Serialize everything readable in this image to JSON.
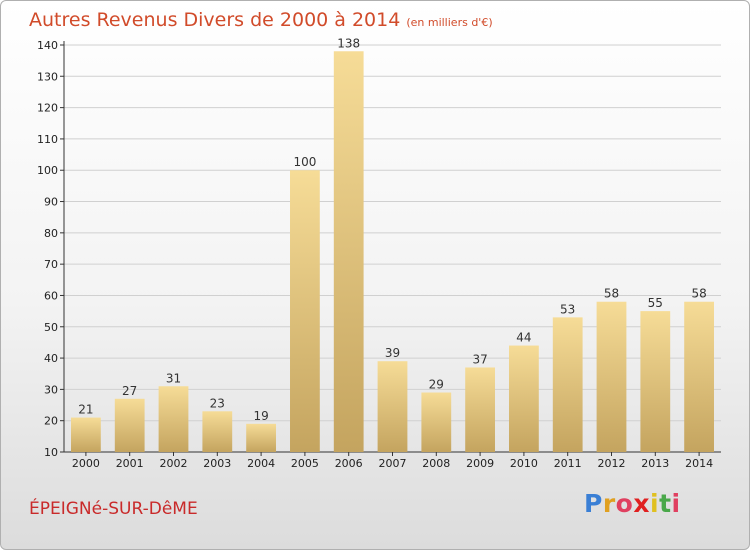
{
  "header": {
    "title": "Autres Revenus Divers de 2000 à 2014",
    "unit": "(en milliers d'€)"
  },
  "footer": {
    "commune": "ÉPEIGNé-SUR-DêME",
    "logo_letters": [
      "P",
      "r",
      "o",
      "x",
      "i",
      "t",
      "i"
    ],
    "logo_colors": [
      "#3a7fd5",
      "#e0a020",
      "#e04060",
      "#e02020",
      "#e0c020",
      "#4aa84a",
      "#e04060"
    ]
  },
  "colors": {
    "title": "#d14b2a",
    "commune": "#c92a2a",
    "bar_light": "#f6dc97",
    "bar_dark": "#c4a45f",
    "grid": "#d0d0d0",
    "axis": "#333333"
  },
  "chart_data": {
    "type": "bar",
    "categories": [
      "2000",
      "2001",
      "2002",
      "2003",
      "2004",
      "2005",
      "2006",
      "2007",
      "2008",
      "2009",
      "2010",
      "2011",
      "2012",
      "2013",
      "2014"
    ],
    "values": [
      21,
      27,
      31,
      23,
      19,
      100,
      138,
      39,
      29,
      37,
      44,
      53,
      58,
      55,
      58
    ],
    "ylim": [
      10,
      140
    ],
    "yticks": [
      10,
      20,
      30,
      40,
      50,
      60,
      70,
      80,
      90,
      100,
      110,
      120,
      130,
      140
    ],
    "grid": true,
    "data_labels": true,
    "legend": "none"
  }
}
